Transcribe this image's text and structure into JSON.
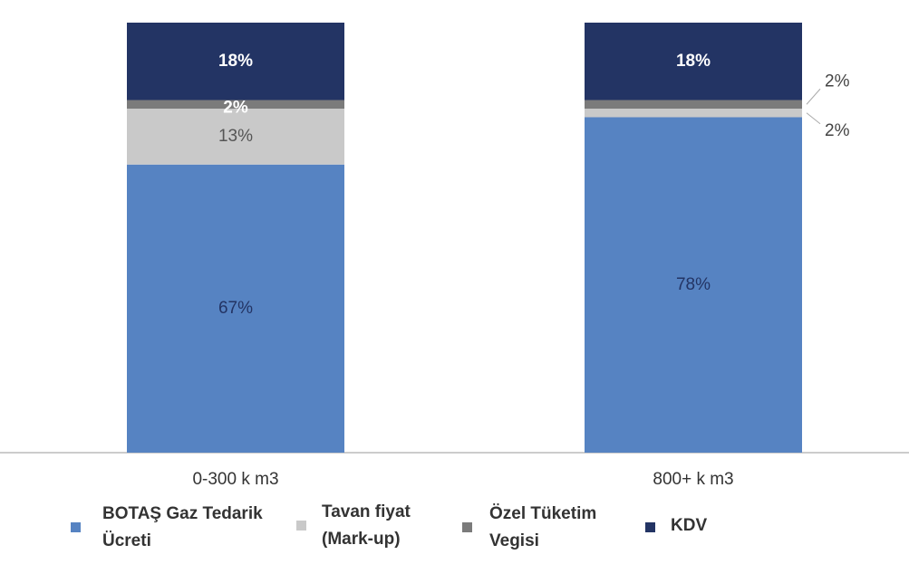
{
  "chart_data": {
    "type": "stacked_bar",
    "categories": [
      "0-300 k m3",
      "800+ k m3"
    ],
    "ylim": [
      0,
      100
    ],
    "series": [
      {
        "name": "BOTAŞ Gaz Tedarik Ücreti",
        "color": "#5683c2",
        "values": [
          67,
          78
        ],
        "value_labels": [
          "67%",
          "78%"
        ]
      },
      {
        "name": "Tavan fiyat (Mark-up)",
        "color": "#c9c9c9",
        "values": [
          13,
          2
        ],
        "value_labels": [
          "13%",
          "2%"
        ]
      },
      {
        "name": "Özel Tüketim Vegisi",
        "color": "#7b7b7b",
        "values": [
          2,
          2
        ],
        "value_labels": [
          "2%",
          "2%"
        ]
      },
      {
        "name": "KDV",
        "color": "#233464",
        "values": [
          18,
          18
        ],
        "value_labels": [
          "18%",
          "18%"
        ]
      }
    ]
  }
}
